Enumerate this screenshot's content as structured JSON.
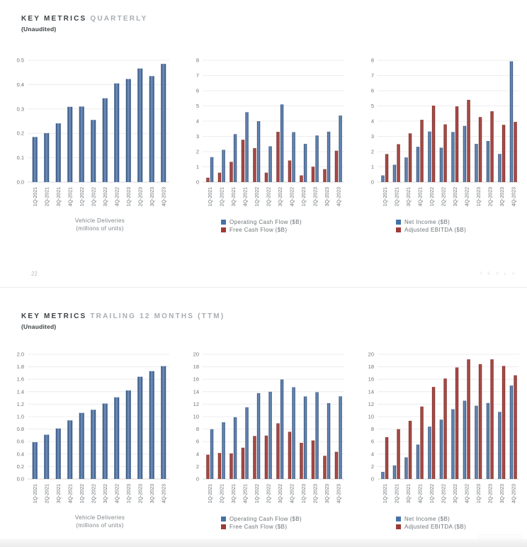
{
  "page": {
    "slide1": {
      "title_strong": "KEY METRICS",
      "title_light": "QUARTERLY",
      "subtitle": "(Unaudited)",
      "page_number": "22",
      "tesla_wordmark": "T E S L A"
    },
    "slide2": {
      "title_strong": "KEY METRICS",
      "title_light": "TRAILING 12 MONTHS (TTM)",
      "subtitle": "(Unaudited)"
    }
  },
  "colors": {
    "bar_blue": "#4472a8",
    "bar_blue_edge": "#2e4c76",
    "bar_blue_mid": "#7394c1",
    "bar_red": "#9e3b37",
    "bar_red_edge": "#7d2b27",
    "bar_red_mid": "#b25550",
    "grid": "#ececec",
    "baseline": "#d8d8d8",
    "tick_text": "#6d7276"
  },
  "chart_data": [
    {
      "type": "bar",
      "categories": [
        "1Q-2021",
        "2Q-2021",
        "3Q-2021",
        "4Q-2021",
        "1Q-2022",
        "2Q-2022",
        "3Q-2022",
        "4Q-2022",
        "1Q-2023",
        "2Q-2023",
        "3Q-2023",
        "4Q-2023"
      ],
      "values": [
        0.185,
        0.201,
        0.241,
        0.309,
        0.31,
        0.255,
        0.344,
        0.405,
        0.423,
        0.466,
        0.435,
        0.485
      ],
      "xlabel_line1": "Vehicle Deliveries",
      "xlabel_line2": "(millions of units)",
      "ylim": [
        0,
        0.5
      ],
      "ytick_step": 0.1,
      "grid": true,
      "legend_position": "none"
    },
    {
      "type": "bar",
      "categories": [
        "1Q-2021",
        "2Q-2021",
        "3Q-2021",
        "4Q-2021",
        "1Q-2022",
        "2Q-2022",
        "3Q-2022",
        "4Q-2022",
        "1Q-2023",
        "2Q-2023",
        "3Q-2023",
        "4Q-2023"
      ],
      "series": [
        {
          "name": "Operating Cash Flow ($B)",
          "color": "blue",
          "offset": 1,
          "values": [
            1.64,
            2.12,
            3.15,
            4.59,
            4.0,
            2.35,
            5.1,
            3.28,
            2.51,
            3.06,
            3.31,
            4.37
          ]
        },
        {
          "name": "Free Cash Flow ($B)",
          "color": "red",
          "offset": 0,
          "values": [
            0.29,
            0.62,
            1.33,
            2.78,
            2.23,
            0.62,
            3.3,
            1.42,
            0.44,
            1.01,
            0.85,
            2.06
          ]
        }
      ],
      "ylim": [
        0,
        8
      ],
      "ytick_step": 1,
      "grid": true,
      "legend_position": "bottom"
    },
    {
      "type": "bar",
      "categories": [
        "1Q-2021",
        "2Q-2021",
        "3Q-2021",
        "4Q-2021",
        "1Q-2022",
        "2Q-2022",
        "3Q-2022",
        "4Q-2022",
        "1Q-2023",
        "2Q-2023",
        "3Q-2023",
        "4Q-2023"
      ],
      "series": [
        {
          "name": "Net Income ($B)",
          "color": "blue",
          "offset": 0,
          "values": [
            0.44,
            1.14,
            1.62,
            2.32,
            3.32,
            2.26,
            3.29,
            3.69,
            2.51,
            2.7,
            1.85,
            7.93
          ]
        },
        {
          "name": "Adjusted EBITDA ($B)",
          "color": "red",
          "offset": 1,
          "values": [
            1.84,
            2.49,
            3.2,
            4.09,
            5.02,
            3.79,
            4.97,
            5.4,
            4.27,
            4.65,
            3.76,
            3.95
          ]
        }
      ],
      "ylim": [
        0,
        8
      ],
      "ytick_step": 1,
      "grid": true,
      "legend_position": "bottom"
    },
    {
      "type": "bar",
      "categories": [
        "1Q-2021",
        "2Q-2021",
        "3Q-2021",
        "4Q-2021",
        "1Q-2022",
        "2Q-2022",
        "3Q-2022",
        "4Q-2022",
        "1Q-2023",
        "2Q-2023",
        "3Q-2023",
        "4Q-2023"
      ],
      "values": [
        0.59,
        0.71,
        0.81,
        0.94,
        1.06,
        1.11,
        1.21,
        1.31,
        1.42,
        1.64,
        1.73,
        1.81
      ],
      "xlabel_line1": "Vehicle Deliveries",
      "xlabel_line2": "(millions of units)",
      "ylim": [
        0,
        2.0
      ],
      "ytick_step": 0.2,
      "grid": true,
      "legend_position": "none"
    },
    {
      "type": "bar",
      "categories": [
        "1Q-2021",
        "2Q-2021",
        "3Q-2021",
        "4Q-2021",
        "1Q-2022",
        "2Q-2022",
        "3Q-2022",
        "4Q-2022",
        "1Q-2023",
        "2Q-2023",
        "3Q-2023",
        "4Q-2023"
      ],
      "series": [
        {
          "name": "Operating Cash Flow ($B)",
          "color": "blue",
          "offset": 1,
          "values": [
            7.98,
            9.1,
            9.91,
            11.5,
            13.77,
            13.99,
            15.96,
            14.72,
            13.24,
            13.93,
            12.16,
            13.26
          ]
        },
        {
          "name": "Free Cash Flow ($B)",
          "color": "red",
          "offset": 0,
          "values": [
            3.89,
            4.17,
            4.11,
            5.02,
            6.89,
            6.96,
            8.93,
            7.57,
            5.8,
            6.18,
            3.72,
            4.36
          ]
        }
      ],
      "ylim": [
        0,
        20
      ],
      "ytick_step": 2,
      "grid": true,
      "legend_position": "bottom"
    },
    {
      "type": "bar",
      "categories": [
        "1Q-2021",
        "2Q-2021",
        "3Q-2021",
        "4Q-2021",
        "1Q-2022",
        "2Q-2022",
        "3Q-2022",
        "4Q-2022",
        "1Q-2023",
        "2Q-2023",
        "3Q-2023",
        "4Q-2023"
      ],
      "series": [
        {
          "name": "Net Income ($B)",
          "color": "blue",
          "offset": 0,
          "values": [
            1.14,
            2.18,
            3.47,
            5.52,
            8.4,
            9.52,
            11.19,
            12.56,
            11.75,
            12.19,
            10.76,
            14.99
          ]
        },
        {
          "name": "Adjusted EBITDA ($B)",
          "color": "red",
          "offset": 1,
          "values": [
            6.71,
            7.99,
            9.33,
            11.62,
            14.76,
            16.11,
            17.89,
            19.19,
            18.42,
            19.19,
            18.13,
            16.63
          ]
        }
      ],
      "ylim": [
        0,
        20
      ],
      "ytick_step": 2,
      "grid": true,
      "legend_position": "bottom"
    }
  ]
}
